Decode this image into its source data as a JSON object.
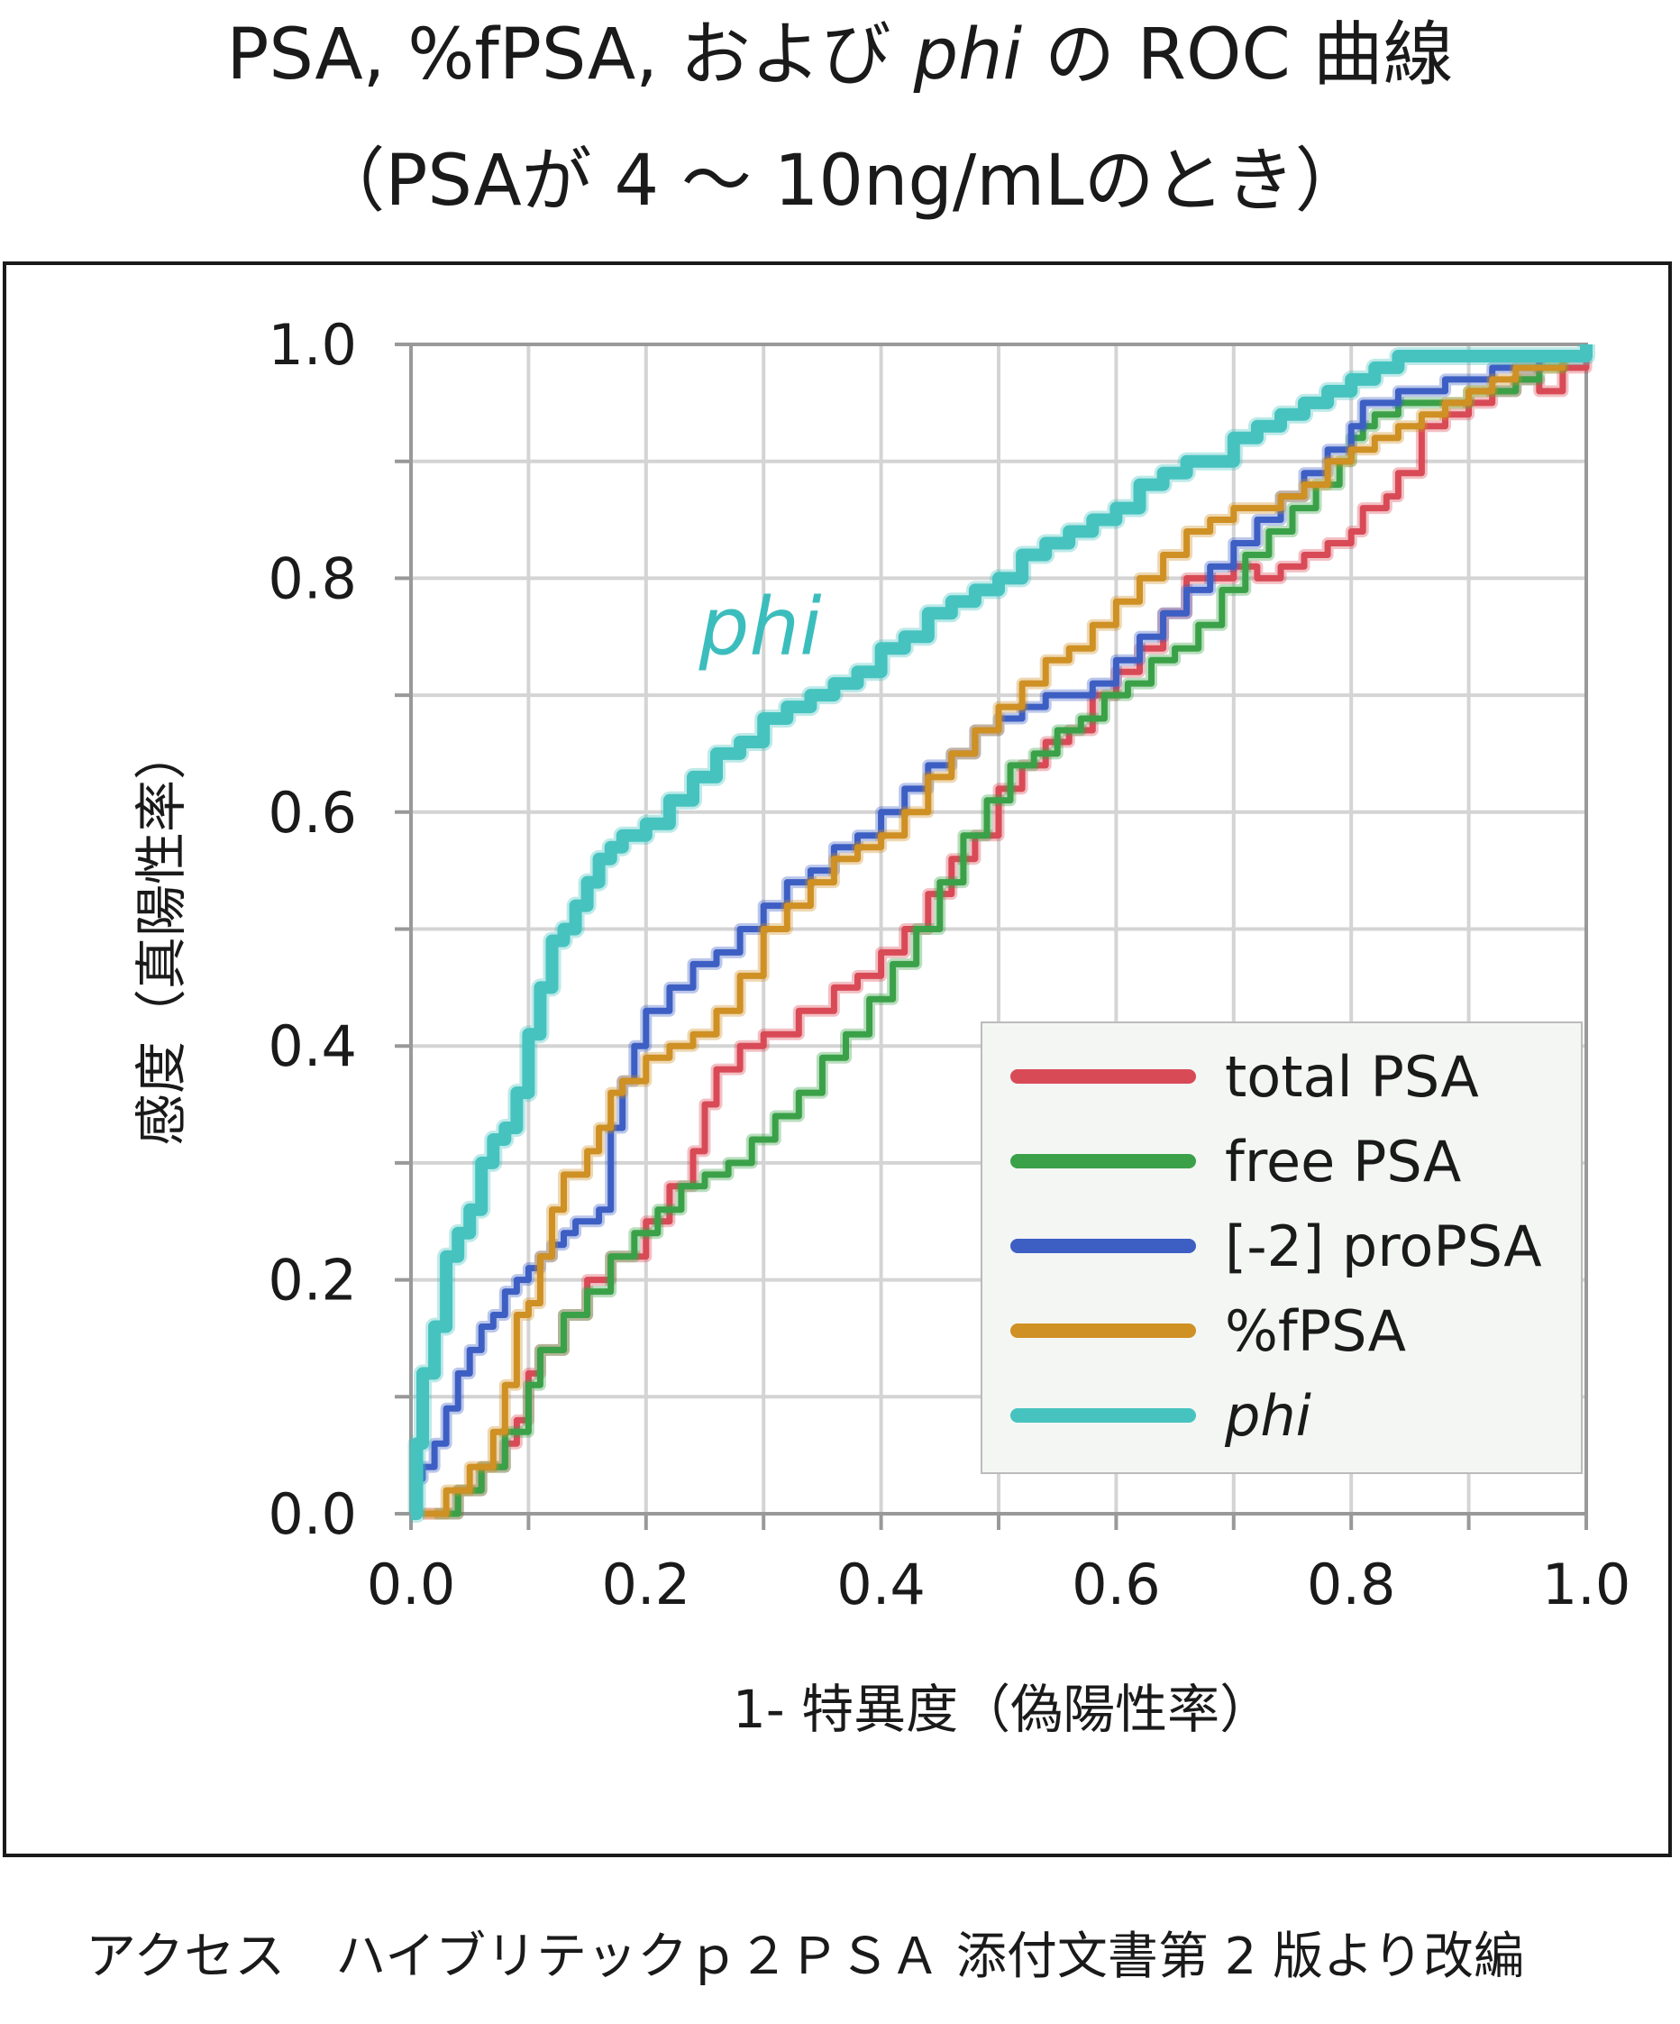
{
  "title": {
    "line1_prefix": "PSA, %fPSA, および ",
    "line1_italic": "phi",
    "line1_suffix": " の ROC 曲線",
    "line2": "（PSAが 4 ～ 10ng/mLのとき）"
  },
  "source_note": "アクセス　ハイブリテックｐ２ＰＳＡ 添付文書第 2 版より改編",
  "chart_data": {
    "type": "line",
    "xlabel": "1- 特異度（偽陽性率）",
    "ylabel": "感度（真陽性率）",
    "xlim": [
      0,
      1
    ],
    "ylim": [
      0,
      1
    ],
    "x_ticks": [
      "0.0",
      "0.2",
      "0.4",
      "0.6",
      "0.8",
      "1.0"
    ],
    "y_ticks": [
      "0.0",
      "0.2",
      "0.4",
      "0.6",
      "0.8",
      "1.0"
    ],
    "grid": true,
    "legend_position": "bottom-right",
    "annotation": {
      "text": "phi",
      "color": "#3cbdbd"
    },
    "series": [
      {
        "name": "total PSA",
        "color": "#d94a57",
        "x": [
          0.01,
          0.04,
          0.06,
          0.08,
          0.09,
          0.1,
          0.11,
          0.13,
          0.15,
          0.17,
          0.2,
          0.22,
          0.24,
          0.25,
          0.26,
          0.28,
          0.3,
          0.33,
          0.36,
          0.38,
          0.4,
          0.42,
          0.44,
          0.46,
          0.48,
          0.5,
          0.52,
          0.54,
          0.56,
          0.58,
          0.6,
          0.62,
          0.64,
          0.66,
          0.68,
          0.7,
          0.72,
          0.74,
          0.76,
          0.78,
          0.8,
          0.81,
          0.82,
          0.83,
          0.84,
          0.86,
          0.88,
          0.9,
          0.92,
          0.94,
          0.96,
          0.98,
          1.0
        ],
        "y": [
          0.0,
          0.02,
          0.04,
          0.06,
          0.08,
          0.12,
          0.14,
          0.17,
          0.2,
          0.22,
          0.25,
          0.28,
          0.31,
          0.35,
          0.38,
          0.4,
          0.41,
          0.43,
          0.45,
          0.46,
          0.48,
          0.5,
          0.53,
          0.56,
          0.58,
          0.62,
          0.64,
          0.66,
          0.67,
          0.7,
          0.72,
          0.74,
          0.77,
          0.8,
          0.8,
          0.81,
          0.8,
          0.81,
          0.82,
          0.83,
          0.84,
          0.86,
          0.86,
          0.87,
          0.89,
          0.93,
          0.94,
          0.95,
          0.96,
          0.97,
          0.96,
          0.98,
          1.0
        ]
      },
      {
        "name": "free PSA",
        "color": "#3aa148",
        "x": [
          0.02,
          0.04,
          0.06,
          0.08,
          0.1,
          0.11,
          0.13,
          0.15,
          0.17,
          0.19,
          0.21,
          0.23,
          0.25,
          0.27,
          0.29,
          0.31,
          0.33,
          0.35,
          0.37,
          0.39,
          0.41,
          0.43,
          0.45,
          0.47,
          0.49,
          0.51,
          0.53,
          0.55,
          0.57,
          0.59,
          0.61,
          0.63,
          0.65,
          0.67,
          0.69,
          0.71,
          0.73,
          0.75,
          0.77,
          0.79,
          0.8,
          0.81,
          0.82,
          0.84,
          0.86,
          0.88,
          0.9,
          0.92,
          0.94,
          0.96,
          0.98,
          1.0
        ],
        "y": [
          0.0,
          0.02,
          0.04,
          0.07,
          0.11,
          0.14,
          0.17,
          0.19,
          0.22,
          0.24,
          0.26,
          0.28,
          0.29,
          0.3,
          0.32,
          0.34,
          0.36,
          0.39,
          0.41,
          0.44,
          0.47,
          0.5,
          0.54,
          0.58,
          0.61,
          0.64,
          0.65,
          0.67,
          0.68,
          0.7,
          0.71,
          0.73,
          0.74,
          0.76,
          0.79,
          0.82,
          0.84,
          0.86,
          0.88,
          0.9,
          0.92,
          0.93,
          0.94,
          0.95,
          0.95,
          0.95,
          0.96,
          0.96,
          0.97,
          0.98,
          0.99,
          1.0
        ]
      },
      {
        "name": "[-2] proPSA",
        "color": "#3d5fc4",
        "x": [
          0.0,
          0.01,
          0.02,
          0.03,
          0.04,
          0.05,
          0.06,
          0.07,
          0.08,
          0.09,
          0.1,
          0.11,
          0.12,
          0.13,
          0.14,
          0.16,
          0.17,
          0.18,
          0.19,
          0.2,
          0.22,
          0.24,
          0.26,
          0.28,
          0.3,
          0.32,
          0.34,
          0.36,
          0.38,
          0.4,
          0.42,
          0.44,
          0.46,
          0.48,
          0.5,
          0.52,
          0.54,
          0.56,
          0.58,
          0.6,
          0.62,
          0.64,
          0.66,
          0.68,
          0.7,
          0.72,
          0.74,
          0.76,
          0.78,
          0.8,
          0.81,
          0.82,
          0.84,
          0.86,
          0.88,
          0.9,
          0.92,
          0.94,
          0.96,
          0.98,
          1.0
        ],
        "y": [
          0.03,
          0.04,
          0.06,
          0.09,
          0.12,
          0.14,
          0.16,
          0.17,
          0.19,
          0.2,
          0.21,
          0.22,
          0.23,
          0.24,
          0.25,
          0.26,
          0.33,
          0.37,
          0.4,
          0.43,
          0.45,
          0.47,
          0.48,
          0.5,
          0.52,
          0.54,
          0.55,
          0.57,
          0.58,
          0.6,
          0.62,
          0.64,
          0.65,
          0.67,
          0.68,
          0.69,
          0.7,
          0.7,
          0.71,
          0.73,
          0.75,
          0.77,
          0.79,
          0.81,
          0.83,
          0.85,
          0.87,
          0.89,
          0.91,
          0.93,
          0.95,
          0.95,
          0.96,
          0.96,
          0.97,
          0.97,
          0.98,
          0.98,
          0.99,
          0.99,
          1.0
        ]
      },
      {
        "name": "%fPSA",
        "color": "#cf9024",
        "x": [
          0.01,
          0.03,
          0.05,
          0.07,
          0.08,
          0.09,
          0.1,
          0.11,
          0.12,
          0.13,
          0.15,
          0.16,
          0.17,
          0.18,
          0.2,
          0.22,
          0.24,
          0.26,
          0.28,
          0.3,
          0.32,
          0.34,
          0.36,
          0.38,
          0.4,
          0.42,
          0.44,
          0.46,
          0.48,
          0.5,
          0.52,
          0.54,
          0.56,
          0.58,
          0.6,
          0.62,
          0.64,
          0.66,
          0.68,
          0.7,
          0.72,
          0.74,
          0.76,
          0.78,
          0.8,
          0.82,
          0.84,
          0.86,
          0.88,
          0.9,
          0.92,
          0.94,
          0.96,
          0.98,
          1.0
        ],
        "y": [
          0.0,
          0.02,
          0.04,
          0.07,
          0.11,
          0.17,
          0.18,
          0.22,
          0.26,
          0.29,
          0.31,
          0.33,
          0.36,
          0.37,
          0.39,
          0.4,
          0.41,
          0.43,
          0.46,
          0.5,
          0.52,
          0.54,
          0.56,
          0.57,
          0.58,
          0.6,
          0.63,
          0.65,
          0.67,
          0.69,
          0.71,
          0.73,
          0.74,
          0.76,
          0.78,
          0.8,
          0.82,
          0.84,
          0.85,
          0.86,
          0.86,
          0.87,
          0.88,
          0.9,
          0.91,
          0.92,
          0.93,
          0.94,
          0.95,
          0.96,
          0.97,
          0.98,
          0.98,
          0.99,
          1.0
        ]
      },
      {
        "name": "phi",
        "color": "#46c3bf",
        "x": [
          0.0,
          0.005,
          0.01,
          0.02,
          0.03,
          0.04,
          0.05,
          0.06,
          0.07,
          0.08,
          0.09,
          0.1,
          0.11,
          0.12,
          0.13,
          0.14,
          0.15,
          0.16,
          0.17,
          0.18,
          0.2,
          0.22,
          0.24,
          0.26,
          0.28,
          0.3,
          0.32,
          0.34,
          0.36,
          0.38,
          0.4,
          0.42,
          0.44,
          0.46,
          0.48,
          0.5,
          0.52,
          0.54,
          0.56,
          0.58,
          0.6,
          0.62,
          0.64,
          0.66,
          0.68,
          0.7,
          0.72,
          0.74,
          0.76,
          0.78,
          0.8,
          0.82,
          0.84,
          0.86,
          0.88,
          0.9,
          0.92,
          0.94,
          0.96,
          0.98,
          1.0
        ],
        "y": [
          0.0,
          0.06,
          0.12,
          0.16,
          0.22,
          0.24,
          0.26,
          0.3,
          0.32,
          0.33,
          0.36,
          0.41,
          0.45,
          0.49,
          0.5,
          0.52,
          0.54,
          0.56,
          0.57,
          0.58,
          0.59,
          0.61,
          0.63,
          0.65,
          0.66,
          0.68,
          0.69,
          0.7,
          0.71,
          0.72,
          0.74,
          0.75,
          0.77,
          0.78,
          0.79,
          0.8,
          0.82,
          0.83,
          0.84,
          0.85,
          0.86,
          0.88,
          0.89,
          0.9,
          0.9,
          0.92,
          0.93,
          0.94,
          0.95,
          0.96,
          0.97,
          0.98,
          0.99,
          0.99,
          0.99,
          0.99,
          0.99,
          0.99,
          0.99,
          0.99,
          1.0
        ]
      }
    ]
  }
}
